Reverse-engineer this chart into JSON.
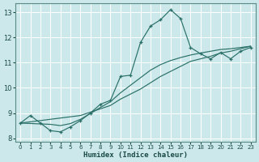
{
  "xlabel": "Humidex (Indice chaleur)",
  "background_color": "#cce8ea",
  "grid_color": "#ffffff",
  "line_color": "#2a7068",
  "xlim": [
    -0.5,
    23.5
  ],
  "ylim": [
    7.85,
    13.35
  ],
  "yticks": [
    8,
    9,
    10,
    11,
    12,
    13
  ],
  "xticks": [
    0,
    1,
    2,
    3,
    4,
    5,
    6,
    7,
    8,
    9,
    10,
    11,
    12,
    13,
    14,
    15,
    16,
    17,
    18,
    19,
    20,
    21,
    22,
    23
  ],
  "curve_main_x": [
    0,
    1,
    2,
    3,
    4,
    5,
    6,
    7,
    8,
    9,
    10,
    11,
    12,
    13,
    14,
    15,
    16,
    17,
    18,
    19,
    20,
    21,
    22,
    23
  ],
  "curve_main_y": [
    8.6,
    8.9,
    8.6,
    8.3,
    8.25,
    8.45,
    8.7,
    9.0,
    9.35,
    9.5,
    10.45,
    10.5,
    11.8,
    12.45,
    12.7,
    13.1,
    12.75,
    11.6,
    11.35,
    11.15,
    11.4,
    11.15,
    11.45,
    11.6
  ],
  "curve_line1_x": [
    0,
    6,
    9,
    10,
    11,
    12,
    13,
    14,
    15,
    16,
    17,
    18,
    19,
    20,
    21,
    22,
    23
  ],
  "curve_line1_y": [
    8.6,
    8.9,
    9.3,
    9.55,
    9.75,
    9.95,
    10.2,
    10.45,
    10.65,
    10.85,
    11.05,
    11.15,
    11.25,
    11.38,
    11.45,
    11.55,
    11.65
  ],
  "curve_line2_x": [
    0,
    3,
    4,
    5,
    6,
    7,
    8,
    9,
    10,
    11,
    12,
    13,
    14,
    15,
    16,
    17,
    18,
    19,
    20,
    21,
    22,
    23
  ],
  "curve_line2_y": [
    8.6,
    8.55,
    8.5,
    8.58,
    8.75,
    8.98,
    9.22,
    9.45,
    9.8,
    10.1,
    10.4,
    10.7,
    10.92,
    11.08,
    11.2,
    11.3,
    11.38,
    11.45,
    11.52,
    11.55,
    11.6,
    11.65
  ]
}
